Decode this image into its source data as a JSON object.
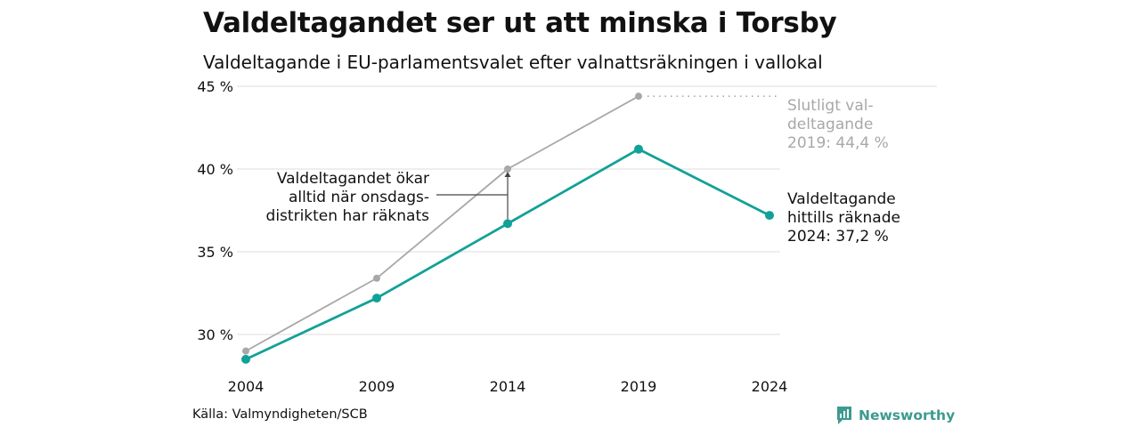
{
  "title": "Valdeltagandet ser ut att minska i Torsby",
  "subtitle": "Valdeltagande i EU-parlamentsvalet efter valnattsräkningen i vallokal",
  "source": "Källa: Valmyndigheten/SCB",
  "brand": {
    "name": "Newsworthy",
    "icon": "newsworthy-logo-icon",
    "color": "#3d9a8e"
  },
  "colors": {
    "final": "#a8a8a8",
    "counted": "#12a197",
    "grid": "#e3e3e3",
    "text": "#111111"
  },
  "chart_data": {
    "type": "line",
    "x": [
      "2004",
      "2009",
      "2014",
      "2019",
      "2024"
    ],
    "y_ticks": [
      "45 %",
      "40 %",
      "35 %",
      "30 %"
    ],
    "y_tick_values": [
      45,
      40,
      35,
      30
    ],
    "ylim": [
      30,
      45
    ],
    "grid": true,
    "series": [
      {
        "name": "Slutligt valdeltagande",
        "values": [
          29.0,
          33.4,
          40.0,
          44.4,
          null
        ]
      },
      {
        "name": "Valdeltagande hittills räknade",
        "values": [
          28.5,
          32.2,
          36.7,
          41.2,
          37.2
        ]
      }
    ],
    "annotations": {
      "final": [
        "Slutligt val-",
        "deltagande",
        "2019: 44,4 %"
      ],
      "counted": [
        "Valdeltagande",
        "hittills räknade",
        "2024: 37,2 %"
      ],
      "note": [
        "Valdeltagandet ökar",
        "alltid när onsdags-",
        "distrikten har räknats"
      ]
    }
  }
}
